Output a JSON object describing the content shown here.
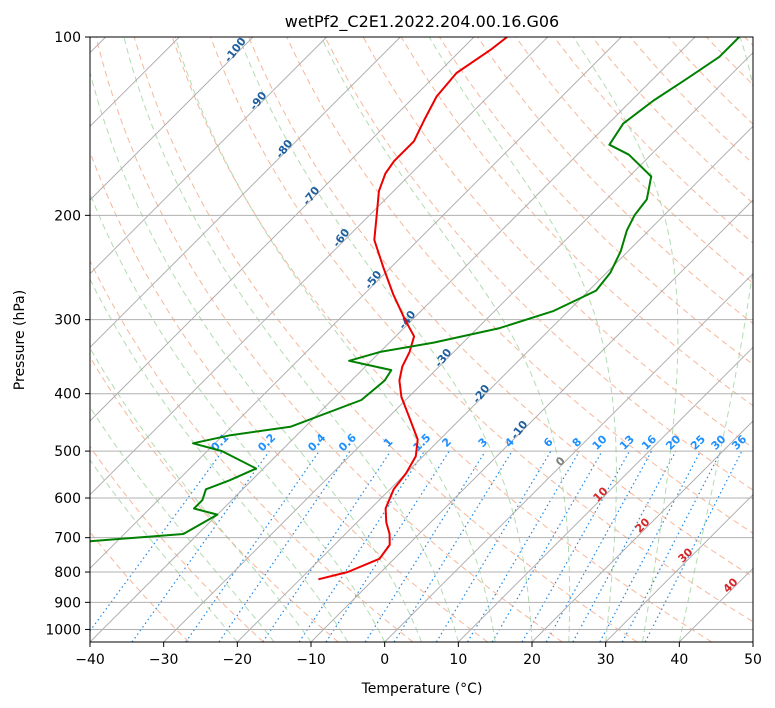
{
  "chart_data": {
    "type": "line",
    "title": "wetPf2_C2E1.2022.204.00.16.G06",
    "xlabel": "Temperature (°C)",
    "ylabel": "Pressure (hPa)",
    "xlim": [
      -40,
      50
    ],
    "ylim": [
      1050,
      100
    ],
    "y_scale": "log",
    "grid": true,
    "x_ticks": [
      -40,
      -30,
      -20,
      -10,
      0,
      10,
      20,
      30,
      40,
      50
    ],
    "y_ticks": [
      100,
      200,
      300,
      400,
      500,
      600,
      700,
      800,
      900,
      1000
    ],
    "series": [
      {
        "role": "temperature",
        "color": "#ee0000",
        "points": [
          [
            -17.5,
            823
          ],
          [
            -14.5,
            800
          ],
          [
            -12,
            760
          ],
          [
            -12.5,
            720
          ],
          [
            -14,
            690
          ],
          [
            -16,
            660
          ],
          [
            -18,
            625
          ],
          [
            -19.5,
            580
          ],
          [
            -20,
            545
          ],
          [
            -21,
            510
          ],
          [
            -23,
            478
          ],
          [
            -27,
            440
          ],
          [
            -31,
            405
          ],
          [
            -33.5,
            380
          ],
          [
            -35,
            360
          ],
          [
            -36,
            340
          ],
          [
            -37.5,
            320
          ],
          [
            -41,
            300
          ],
          [
            -46,
            272
          ],
          [
            -51,
            245
          ],
          [
            -56,
            220
          ],
          [
            -59,
            200
          ],
          [
            -62,
            182
          ],
          [
            -63.5,
            170
          ],
          [
            -64,
            162
          ],
          [
            -64,
            150
          ],
          [
            -65.5,
            138
          ],
          [
            -67,
            126
          ],
          [
            -67.5,
            115
          ],
          [
            -66,
            105
          ],
          [
            -65.5,
            100
          ]
        ]
      },
      {
        "role": "dewpoint",
        "color": "#008000",
        "points": [
          [
            -57,
            823
          ],
          [
            -68,
            818
          ],
          [
            -75,
            815
          ],
          [
            -90,
            810
          ],
          [
            -70,
            808
          ],
          [
            -61,
            800
          ],
          [
            -60,
            785
          ],
          [
            -57,
            760
          ],
          [
            -60,
            735
          ],
          [
            -55,
            712
          ],
          [
            -42,
            690
          ],
          [
            -40,
            640
          ],
          [
            -44,
            625
          ],
          [
            -44,
            605
          ],
          [
            -45,
            580
          ],
          [
            -43,
            560
          ],
          [
            -41,
            535
          ],
          [
            -48,
            500
          ],
          [
            -53,
            485
          ],
          [
            -49,
            470
          ],
          [
            -42,
            455
          ],
          [
            -36,
            410
          ],
          [
            -35.5,
            380
          ],
          [
            -36,
            365
          ],
          [
            -43,
            352
          ],
          [
            -40,
            340
          ],
          [
            -34,
            328
          ],
          [
            -27,
            310
          ],
          [
            -22,
            290
          ],
          [
            -19,
            268
          ],
          [
            -19.5,
            250
          ],
          [
            -21,
            230
          ],
          [
            -23,
            212
          ],
          [
            -24,
            200
          ],
          [
            -24.5,
            188
          ],
          [
            -27,
            172
          ],
          [
            -33,
            158
          ],
          [
            -37,
            152
          ],
          [
            -38,
            140
          ],
          [
            -37,
            128
          ],
          [
            -35.5,
            118
          ],
          [
            -34,
            108
          ],
          [
            -34,
            100
          ]
        ]
      }
    ],
    "dry_adiabat_labels": [
      "-100",
      "-90",
      "-80",
      "-70",
      "-60",
      "-50",
      "-40",
      "-30",
      "-20",
      "-10"
    ],
    "moist_adiabat_labels": [
      "0",
      "10",
      "20",
      "30",
      "40"
    ],
    "mixing_ratio_labels": [
      "0.1",
      "0.2",
      "0.4",
      "0.6",
      "1",
      "1.5",
      "2",
      "3",
      "4",
      "6",
      "8",
      "10",
      "13",
      "16",
      "20",
      "25",
      "30",
      "36"
    ],
    "colors": {
      "isotherm": "#b0b0b0",
      "dry_adiabat": "#f4a582",
      "moist_adiabat": "#9fd29f",
      "mixing_ratio": "#1e88e5",
      "dry_label": "#1f5f9f",
      "moist_label": "#d62728",
      "mixing_label": "#1e90ff",
      "lcl_label": "#7f7f7f"
    },
    "lcl_label": "0"
  }
}
